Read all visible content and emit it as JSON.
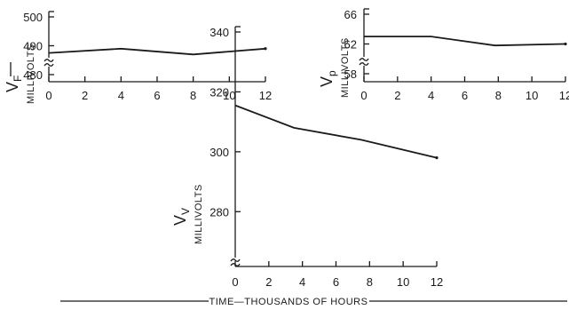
{
  "chart_data": [
    {
      "type": "line",
      "y_symbol": "V",
      "y_subscript": "F",
      "ylabel": "MILLIVOLTS",
      "xlim": [
        0,
        12
      ],
      "ylim": [
        480,
        500
      ],
      "y_ticks": [
        "500",
        "490",
        "480"
      ],
      "x_ticks": [
        "0",
        "2",
        "4",
        "6",
        "8",
        "10",
        "12"
      ],
      "axis_break": true,
      "series": [
        {
          "x": [
            0,
            4,
            8,
            12
          ],
          "y": [
            487.5,
            489,
            487,
            489
          ]
        }
      ]
    },
    {
      "type": "line",
      "y_symbol": "V",
      "y_subscript": "p",
      "ylabel": "MILLIVOLTS",
      "xlim": [
        0,
        12
      ],
      "ylim": [
        58,
        66
      ],
      "y_ticks": [
        "66",
        "62",
        "58"
      ],
      "x_ticks": [
        "0",
        "2",
        "4",
        "6",
        "8",
        "10",
        "12"
      ],
      "axis_break": true,
      "series": [
        {
          "x": [
            0,
            4,
            7.8,
            12
          ],
          "y": [
            63,
            63,
            61.8,
            62
          ]
        }
      ]
    },
    {
      "type": "line",
      "y_symbol": "V",
      "y_subscript": "V",
      "ylabel": "MILLIVOLTS",
      "xlim": [
        0,
        12
      ],
      "ylim": [
        280,
        340
      ],
      "y_ticks": [
        "340",
        "320",
        "300",
        "280"
      ],
      "x_ticks": [
        "0",
        "2",
        "4",
        "6",
        "8",
        "10",
        "12"
      ],
      "axis_break": true,
      "series": [
        {
          "x": [
            0,
            3.5,
            7.5,
            12
          ],
          "y": [
            315.5,
            308,
            304,
            298
          ]
        }
      ]
    }
  ],
  "xlabel": "TIME—THOUSANDS OF HOURS"
}
